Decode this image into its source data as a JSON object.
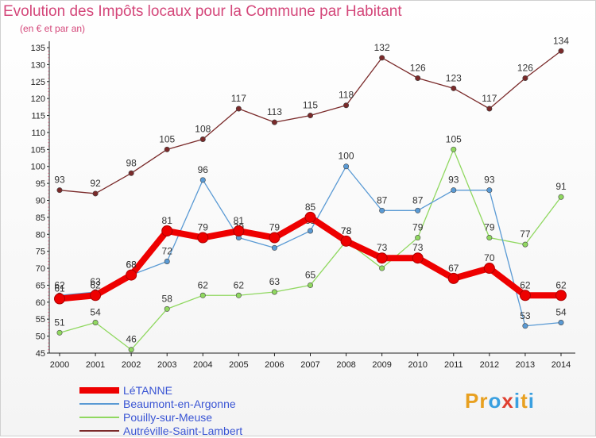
{
  "title": "Evolution des Impôts locaux pour la Commune par Habitant",
  "subtitle": "(en € et par an)",
  "logo": {
    "text": "Proxiti",
    "letters": [
      "P",
      "r",
      "o",
      "x",
      "i",
      "t",
      "i"
    ],
    "colors": [
      "#e8a020",
      "#e8a020",
      "#3aa0e0",
      "#e04030",
      "#3aa0e0",
      "#e8a020",
      "#3aa0e0"
    ]
  },
  "chart_data": {
    "type": "line",
    "title": "Evolution des Impôts locaux pour la Commune par Habitant",
    "subtitle": "(en € et par an)",
    "xlabel": "",
    "ylabel": "",
    "ylim": [
      45,
      135
    ],
    "ytick_step": 5,
    "grid": true,
    "legend_position": "bottom-left",
    "x": [
      "2000",
      "2001",
      "2002",
      "2003",
      "2004",
      "2005",
      "2006",
      "2007",
      "2008",
      "2009",
      "2010",
      "2011",
      "2012",
      "2013",
      "2014"
    ],
    "series": [
      {
        "name": "Autréville-Saint-Lambert",
        "color": "#7a2a2a",
        "values": [
          93,
          92,
          98,
          105,
          108,
          117,
          113,
          115,
          118,
          132,
          126,
          123,
          117,
          126,
          134
        ]
      },
      {
        "name": "Pouilly-sur-Meuse",
        "color": "#90d860",
        "values": [
          51,
          54,
          46,
          58,
          62,
          62,
          63,
          65,
          78,
          70,
          79,
          105,
          79,
          77,
          91
        ]
      },
      {
        "name": "Beaumont-en-Argonne",
        "color": "#5a9ad4",
        "values": [
          62,
          63,
          68,
          72,
          96,
          79,
          76,
          81,
          100,
          87,
          87,
          93,
          93,
          53,
          54
        ]
      },
      {
        "name": "LéTANNE",
        "color": "#ee0000",
        "values": [
          61,
          62,
          68,
          81,
          79,
          81,
          79,
          85,
          78,
          73,
          73,
          67,
          70,
          62,
          62
        ]
      }
    ],
    "legend_order": [
      "LéTANNE",
      "Beaumont-en-Argonne",
      "Pouilly-sur-Meuse",
      "Autréville-Saint-Lambert"
    ]
  }
}
